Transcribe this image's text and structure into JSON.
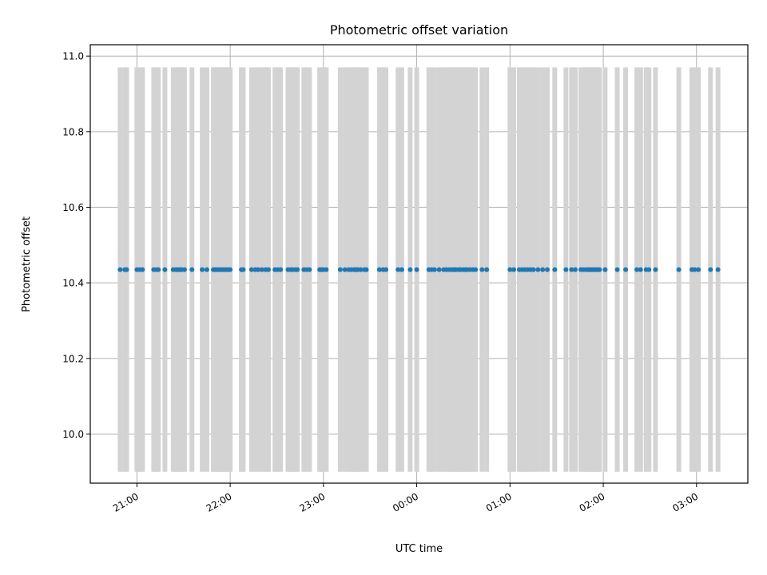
{
  "chart_data": {
    "type": "scatter",
    "title": "Photometric offset variation",
    "xlabel": "UTC time",
    "ylabel": "Photometric offset",
    "x_unit": "UTC time (hours, fractional; values past 24 = after midnight)",
    "xlim": [
      20.5,
      27.55
    ],
    "ylim": [
      9.87,
      11.03
    ],
    "x_ticks": [
      21,
      22,
      23,
      24,
      25,
      26,
      27
    ],
    "x_tick_labels": [
      "21:00",
      "22:00",
      "23:00",
      "00:00",
      "01:00",
      "02:00",
      "03:00"
    ],
    "y_ticks": [
      10.0,
      10.2,
      10.4,
      10.6,
      10.8,
      11.0
    ],
    "y_tick_labels": [
      "10.0",
      "10.2",
      "10.4",
      "10.6",
      "10.8",
      "11.0"
    ],
    "grid": true,
    "error_bar_range": [
      9.9,
      10.97
    ],
    "series": [
      {
        "marker_color": "#1f77b4",
        "error_bar_color": "#d3d3d3",
        "y_value": 10.435,
        "x": [
          20.82,
          20.87,
          20.89,
          21.0,
          21.03,
          21.06,
          21.18,
          21.21,
          21.23,
          21.3,
          21.39,
          21.42,
          21.44,
          21.46,
          21.48,
          21.51,
          21.59,
          21.7,
          21.75,
          21.82,
          21.84,
          21.86,
          21.88,
          21.9,
          21.92,
          21.94,
          21.96,
          21.98,
          22.0,
          22.12,
          22.14,
          22.23,
          22.27,
          22.3,
          22.34,
          22.38,
          22.41,
          22.48,
          22.51,
          22.54,
          22.62,
          22.65,
          22.67,
          22.7,
          22.72,
          22.79,
          22.82,
          22.85,
          22.96,
          22.98,
          23.0,
          23.03,
          23.18,
          23.23,
          23.27,
          23.3,
          23.33,
          23.35,
          23.37,
          23.4,
          23.44,
          23.46,
          23.6,
          23.64,
          23.67,
          23.8,
          23.84,
          23.93,
          24.0,
          24.13,
          24.16,
          24.19,
          24.24,
          24.29,
          24.32,
          24.35,
          24.38,
          24.4,
          24.42,
          24.45,
          24.47,
          24.5,
          24.52,
          24.54,
          24.57,
          24.6,
          24.63,
          24.7,
          24.75,
          25.0,
          25.04,
          25.1,
          25.13,
          25.16,
          25.19,
          25.22,
          25.25,
          25.3,
          25.35,
          25.4,
          25.48,
          25.6,
          25.66,
          25.7,
          25.76,
          25.79,
          25.82,
          25.84,
          25.86,
          25.88,
          25.9,
          25.92,
          25.94,
          25.96,
          26.02,
          26.15,
          26.24,
          26.36,
          26.4,
          26.46,
          26.49,
          26.56,
          26.81,
          26.95,
          26.98,
          27.02,
          27.15,
          27.23
        ]
      }
    ]
  }
}
